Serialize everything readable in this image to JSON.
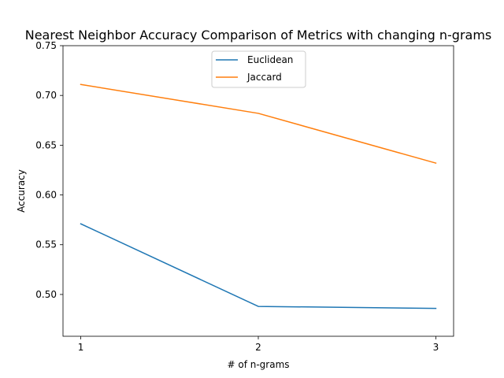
{
  "chart_data": {
    "type": "line",
    "title": "Nearest Neighbor Accuracy Comparison of Metrics with changing n-grams",
    "xlabel": "# of n-grams",
    "ylabel": "Accuracy",
    "x": [
      1,
      2,
      3
    ],
    "xticks": [
      "1",
      "2",
      "3"
    ],
    "xlim": [
      0.9,
      3.1
    ],
    "ylim": [
      0.458,
      0.75
    ],
    "yticks": [
      "0.50",
      "0.55",
      "0.60",
      "0.65",
      "0.70",
      "0.75"
    ],
    "ytick_values": [
      0.5,
      0.55,
      0.6,
      0.65,
      0.7,
      0.75
    ],
    "grid": false,
    "legend_position": "top-center",
    "series": [
      {
        "name": "Euclidean",
        "color": "#1f77b4",
        "values": [
          0.571,
          0.488,
          0.486
        ]
      },
      {
        "name": "Jaccard",
        "color": "#ff7f0e",
        "values": [
          0.711,
          0.682,
          0.632
        ]
      }
    ]
  }
}
